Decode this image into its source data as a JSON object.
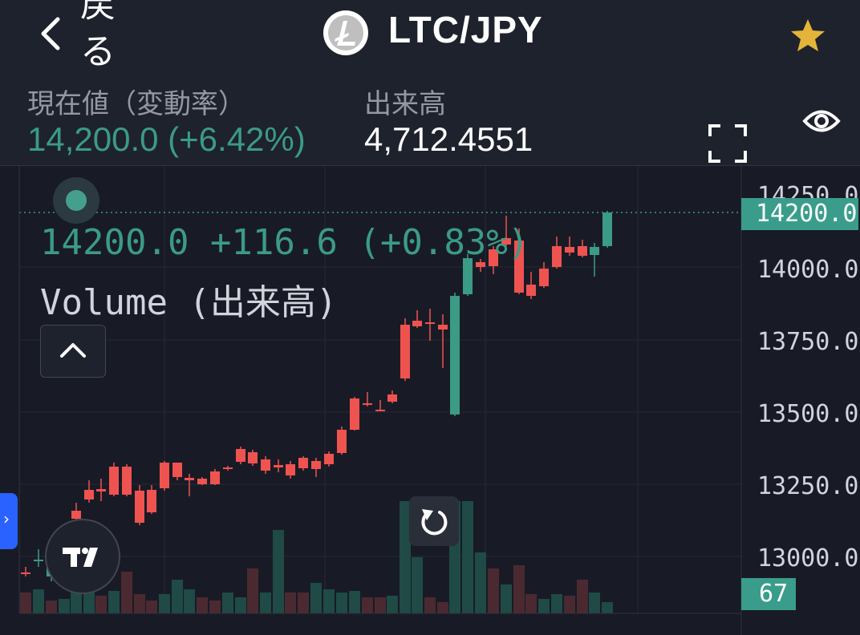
{
  "header": {
    "back_label": "戻\nる",
    "title": "LTC/JPY",
    "coin_icon": "litecoin-icon"
  },
  "info": {
    "price_label": "現在値（変動率）",
    "price_value": "14,200.0 (+6.42%)",
    "volume_label": "出来高",
    "volume_value": "4,712.4551"
  },
  "chart": {
    "legend_price": "14200.0 +116.6 (+0.83%)",
    "legend_volume": "Volume (出来高)",
    "axis_labels": [
      "14250.0",
      "14000.0",
      "13750.0",
      "13500.0",
      "13250.0",
      "13000.0"
    ],
    "current_price_badge": "14200.0",
    "volume_badge": "67"
  },
  "colors": {
    "up": "#3b9b85",
    "down": "#ef5350",
    "background": "#181b26",
    "star": "#e4b43a"
  }
}
